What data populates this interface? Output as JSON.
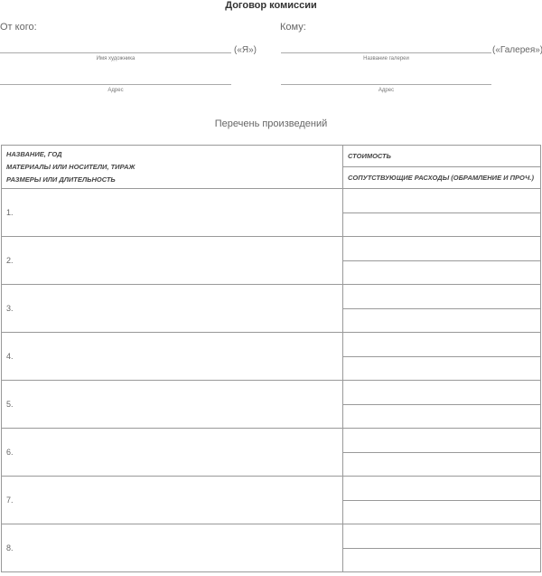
{
  "title": "Договор комиссии",
  "from": {
    "label": "От кого:",
    "party": "(«Я»)",
    "name_caption": "Имя художника",
    "address_caption": "Адрес"
  },
  "to": {
    "label": "Кому:",
    "party": "(«Галерея»)",
    "name_caption": "Название галереи",
    "address_caption": "Адрес"
  },
  "list_title": "Перечень произведений",
  "table": {
    "header_left": [
      "НАЗВАНИЕ, ГОД",
      "МАТЕРИАЛЫ ИЛИ НОСИТЕЛИ, ТИРАЖ",
      "РАЗМЕРЫ ИЛИ ДЛИТЕЛЬНОСТЬ"
    ],
    "header_cost": "СТОИМОСТЬ",
    "header_expenses": "СОПУТСТВУЮЩИЕ РАСХОДЫ (ОБРАМЛЕНИЕ И ПРОЧ.)",
    "rows": [
      "1.",
      "2.",
      "3.",
      "4.",
      "5.",
      "6.",
      "7.",
      "8."
    ]
  }
}
